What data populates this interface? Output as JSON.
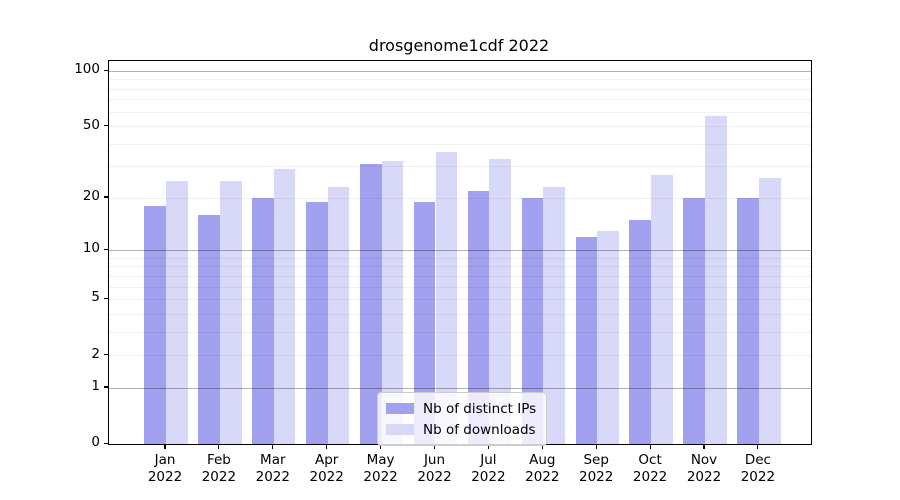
{
  "chart_data": {
    "type": "bar",
    "title": "drosgenome1cdf 2022",
    "year": "2022",
    "categories": [
      "Jan",
      "Feb",
      "Mar",
      "Apr",
      "May",
      "Jun",
      "Jul",
      "Aug",
      "Sep",
      "Oct",
      "Nov",
      "Dec"
    ],
    "series": [
      {
        "name": "Nb of distinct IPs",
        "color": "#a1a1f0",
        "values": [
          18,
          16,
          20,
          19,
          31,
          19,
          22,
          20,
          12,
          15,
          20,
          20
        ]
      },
      {
        "name": "Nb of downloads",
        "color": "#d8d8f8",
        "values": [
          25,
          25,
          29,
          23,
          32,
          36,
          33,
          23,
          13,
          27,
          57,
          26
        ]
      }
    ],
    "yscale": "log10(1+x)",
    "ylim": [
      0,
      110
    ],
    "yticks": [
      100,
      50,
      20,
      10,
      5,
      2,
      1,
      0
    ],
    "grid": {
      "major": [
        1,
        10,
        100
      ],
      "minor": [
        2,
        3,
        4,
        5,
        6,
        7,
        8,
        9,
        20,
        30,
        40,
        50,
        60,
        70,
        80,
        90
      ],
      "major_color": "#b0b0b0",
      "minor_color": "#ebebeb"
    },
    "legend_position": "inside-bottom-center",
    "axis_color": "#000000"
  }
}
